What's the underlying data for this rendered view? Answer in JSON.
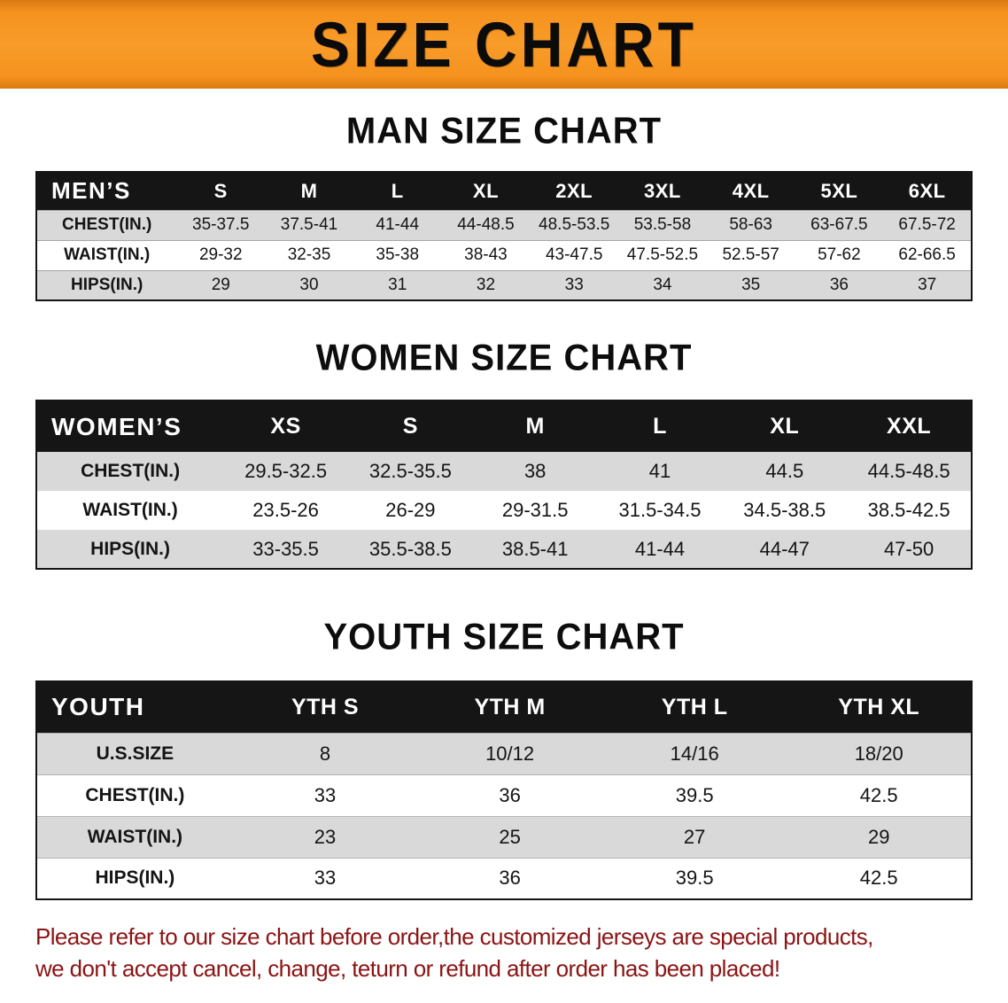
{
  "banner": {
    "title": "SIZE CHART"
  },
  "colors": {
    "banner_orange": "#F6921E",
    "table_header_black": "#151515",
    "row_stripe_gray": "#D9D9D9",
    "footer_text_red": "#8B1414"
  },
  "footer": {
    "lines": [
      "Please refer to our size chart before order,the customized jerseys are special products,",
      "we don't accept cancel, change, teturn or refund after order has been placed!"
    ]
  },
  "chart_data": [
    {
      "type": "table",
      "title": "MAN SIZE CHART",
      "header_label": "MEN’S",
      "size_columns": [
        "S",
        "M",
        "L",
        "XL",
        "2XL",
        "3XL",
        "4XL",
        "5XL",
        "6XL"
      ],
      "rows": [
        {
          "label": "CHEST(IN.)",
          "values": [
            "35-37.5",
            "37.5-41",
            "41-44",
            "44-48.5",
            "48.5-53.5",
            "53.5-58",
            "58-63",
            "63-67.5",
            "67.5-72"
          ]
        },
        {
          "label": "WAIST(IN.)",
          "values": [
            "29-32",
            "32-35",
            "35-38",
            "38-43",
            "43-47.5",
            "47.5-52.5",
            "52.5-57",
            "57-62",
            "62-66.5"
          ]
        },
        {
          "label": "HIPS(IN.)",
          "values": [
            "29",
            "30",
            "31",
            "32",
            "33",
            "34",
            "35",
            "36",
            "37"
          ]
        }
      ]
    },
    {
      "type": "table",
      "title": "WOMEN SIZE CHART",
      "header_label": "WOMEN’S",
      "size_columns": [
        "XS",
        "S",
        "M",
        "L",
        "XL",
        "XXL"
      ],
      "rows": [
        {
          "label": "CHEST(IN.)",
          "values": [
            "29.5-32.5",
            "32.5-35.5",
            "38",
            "41",
            "44.5",
            "44.5-48.5"
          ]
        },
        {
          "label": "WAIST(IN.)",
          "values": [
            "23.5-26",
            "26-29",
            "29-31.5",
            "31.5-34.5",
            "34.5-38.5",
            "38.5-42.5"
          ]
        },
        {
          "label": "HIPS(IN.)",
          "values": [
            "33-35.5",
            "35.5-38.5",
            "38.5-41",
            "41-44",
            "44-47",
            "47-50"
          ]
        }
      ]
    },
    {
      "type": "table",
      "title": "YOUTH SIZE CHART",
      "header_label": "YOUTH",
      "size_columns": [
        "YTH S",
        "YTH M",
        "YTH L",
        "YTH XL"
      ],
      "rows": [
        {
          "label": "U.S.SIZE",
          "values": [
            "8",
            "10/12",
            "14/16",
            "18/20"
          ]
        },
        {
          "label": "CHEST(IN.)",
          "values": [
            "33",
            "36",
            "39.5",
            "42.5"
          ]
        },
        {
          "label": "WAIST(IN.)",
          "values": [
            "23",
            "25",
            "27",
            "29"
          ]
        },
        {
          "label": "HIPS(IN.)",
          "values": [
            "33",
            "36",
            "39.5",
            "42.5"
          ]
        }
      ]
    }
  ]
}
